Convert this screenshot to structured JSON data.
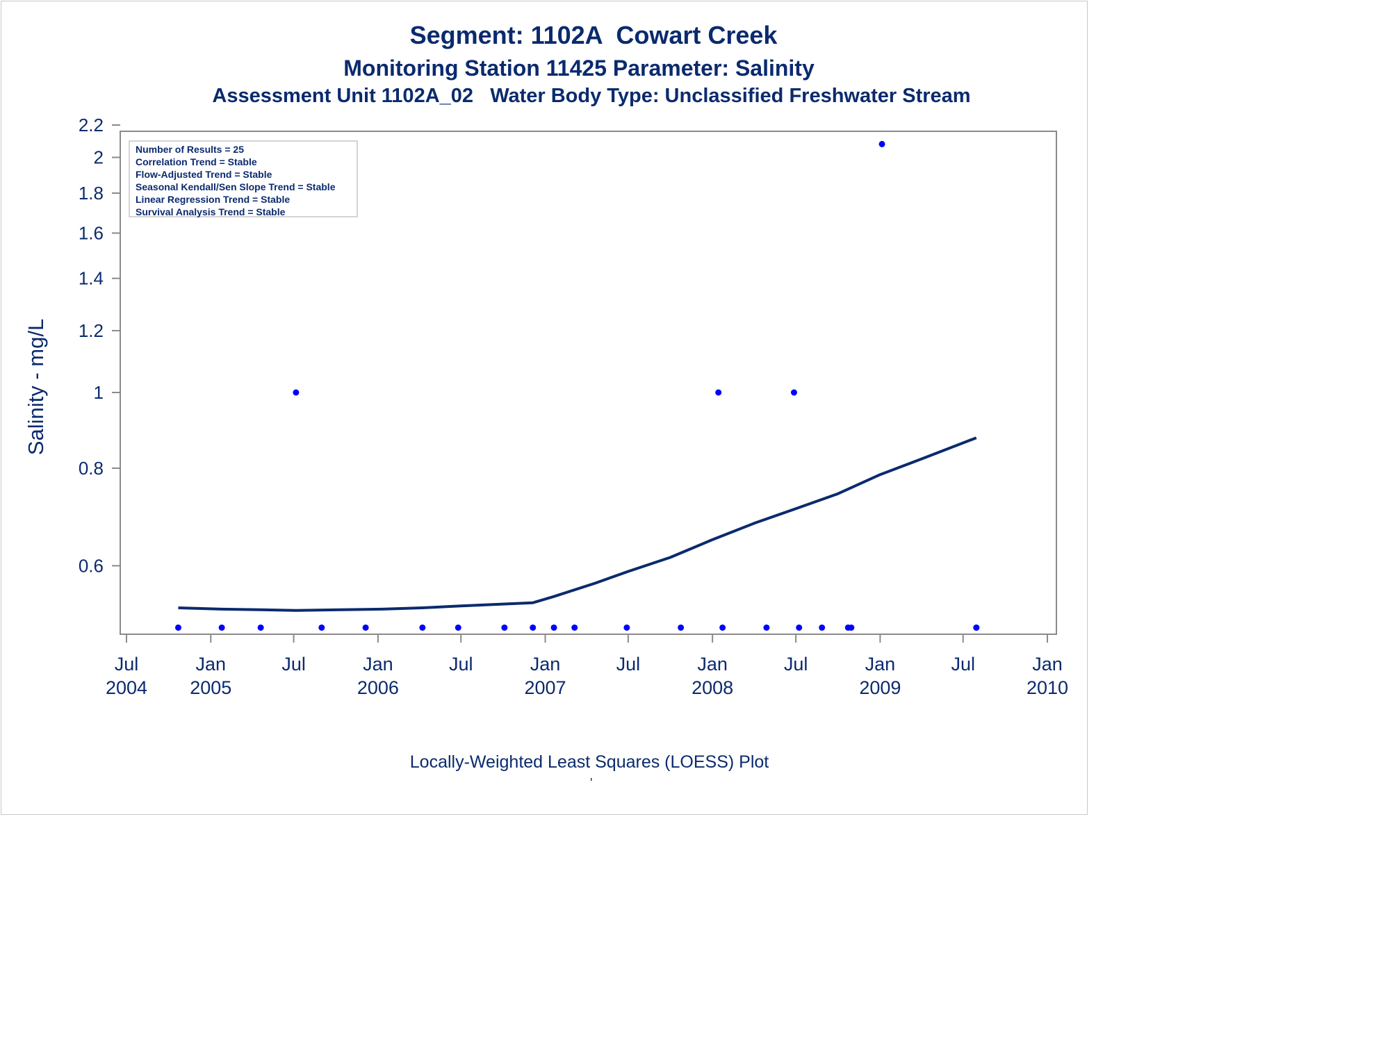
{
  "titles": {
    "line1": "Segment: 1102A  Cowart Creek",
    "line2": "Monitoring Station 11425 Parameter: Salinity",
    "line3": "Assessment Unit 1102A_02   Water Body Type: Unclassified Freshwater Stream"
  },
  "stats_box": [
    "Number of Results = 25",
    "Correlation Trend = Stable",
    "Flow-Adjusted Trend = Stable",
    "Seasonal Kendall/Sen Slope Trend = Stable",
    "Linear Regression Trend = Stable",
    "Survival Analysis Trend = Stable"
  ],
  "footnote": "Locally-Weighted Least Squares (LOESS) Plot",
  "footnote_mark": "'",
  "colors": {
    "text": "#0b2a6e",
    "points": "#0000ff",
    "loess_line": "#0b2a6e",
    "axis": "#8a8a8a"
  },
  "chart_data": {
    "type": "scatter",
    "ylabel": "Salinity - mg/L",
    "xlabel": "",
    "y_scale": "log",
    "ylim": [
      0.5,
      2.2
    ],
    "y_ticks": [
      0.6,
      0.8,
      1,
      1.2,
      1.4,
      1.6,
      1.8,
      2,
      2.2
    ],
    "y_tick_labels": [
      "0.6",
      "0.8",
      "1",
      "1.2",
      "1.4",
      "1.6",
      "1.8",
      "2",
      "2.2"
    ],
    "xlim": [
      "2004-07-01",
      "2010-01-01"
    ],
    "x_ticks": [
      {
        "date": "2004-07-01",
        "month": "Jul",
        "year": "2004"
      },
      {
        "date": "2005-01-01",
        "month": "Jan",
        "year": "2005"
      },
      {
        "date": "2005-07-01",
        "month": "Jul",
        "year": ""
      },
      {
        "date": "2006-01-01",
        "month": "Jan",
        "year": "2006"
      },
      {
        "date": "2006-07-01",
        "month": "Jul",
        "year": ""
      },
      {
        "date": "2007-01-01",
        "month": "Jan",
        "year": "2007"
      },
      {
        "date": "2007-07-01",
        "month": "Jul",
        "year": ""
      },
      {
        "date": "2008-01-01",
        "month": "Jan",
        "year": "2008"
      },
      {
        "date": "2008-07-01",
        "month": "Jul",
        "year": ""
      },
      {
        "date": "2009-01-01",
        "month": "Jan",
        "year": "2009"
      },
      {
        "date": "2009-07-01",
        "month": "Jul",
        "year": ""
      },
      {
        "date": "2010-01-01",
        "month": "Jan",
        "year": "2010"
      }
    ],
    "legend": "top-left",
    "series": [
      {
        "kind": "points",
        "points": [
          {
            "x": "2004-10-22",
            "y": 0.5
          },
          {
            "x": "2005-01-25",
            "y": 0.5
          },
          {
            "x": "2005-04-20",
            "y": 0.5
          },
          {
            "x": "2005-08-31",
            "y": 0.5
          },
          {
            "x": "2005-07-06",
            "y": 1.0
          },
          {
            "x": "2005-12-05",
            "y": 0.5
          },
          {
            "x": "2006-04-08",
            "y": 0.5
          },
          {
            "x": "2006-06-25",
            "y": 0.5
          },
          {
            "x": "2006-10-04",
            "y": 0.5
          },
          {
            "x": "2006-12-05",
            "y": 0.5
          },
          {
            "x": "2007-01-20",
            "y": 0.5
          },
          {
            "x": "2007-03-06",
            "y": 0.5
          },
          {
            "x": "2007-06-28",
            "y": 0.5
          },
          {
            "x": "2007-10-24",
            "y": 0.5
          },
          {
            "x": "2008-01-23",
            "y": 0.5
          },
          {
            "x": "2008-04-28",
            "y": 0.5
          },
          {
            "x": "2008-08-27",
            "y": 0.5
          },
          {
            "x": "2008-10-30",
            "y": 0.5
          },
          {
            "x": "2008-01-14",
            "y": 1.0
          },
          {
            "x": "2008-06-27",
            "y": 1.0
          },
          {
            "x": "2008-07-08",
            "y": 0.5
          },
          {
            "x": "2008-10-23",
            "y": 0.5
          },
          {
            "x": "2009-01-05",
            "y": 2.08
          },
          {
            "x": "2009-07-30",
            "y": 0.5
          },
          {
            "x": "2009-07-30",
            "y": 0.5
          }
        ]
      },
      {
        "kind": "line",
        "points": [
          {
            "x": "2004-10-22",
            "y": 0.53
          },
          {
            "x": "2005-01-25",
            "y": 0.528
          },
          {
            "x": "2005-04-20",
            "y": 0.527
          },
          {
            "x": "2005-07-06",
            "y": 0.526
          },
          {
            "x": "2005-10-11",
            "y": 0.527
          },
          {
            "x": "2006-01-10",
            "y": 0.528
          },
          {
            "x": "2006-04-08",
            "y": 0.53
          },
          {
            "x": "2006-07-01",
            "y": 0.533
          },
          {
            "x": "2006-10-04",
            "y": 0.536
          },
          {
            "x": "2006-12-05",
            "y": 0.538
          },
          {
            "x": "2007-01-20",
            "y": 0.548
          },
          {
            "x": "2007-04-20",
            "y": 0.57
          },
          {
            "x": "2007-07-01",
            "y": 0.59
          },
          {
            "x": "2007-10-01",
            "y": 0.615
          },
          {
            "x": "2008-01-01",
            "y": 0.648
          },
          {
            "x": "2008-04-01",
            "y": 0.68
          },
          {
            "x": "2008-07-01",
            "y": 0.71
          },
          {
            "x": "2008-10-01",
            "y": 0.742
          },
          {
            "x": "2009-01-01",
            "y": 0.785
          },
          {
            "x": "2009-04-01",
            "y": 0.822
          },
          {
            "x": "2009-07-30",
            "y": 0.875
          }
        ]
      }
    ]
  }
}
